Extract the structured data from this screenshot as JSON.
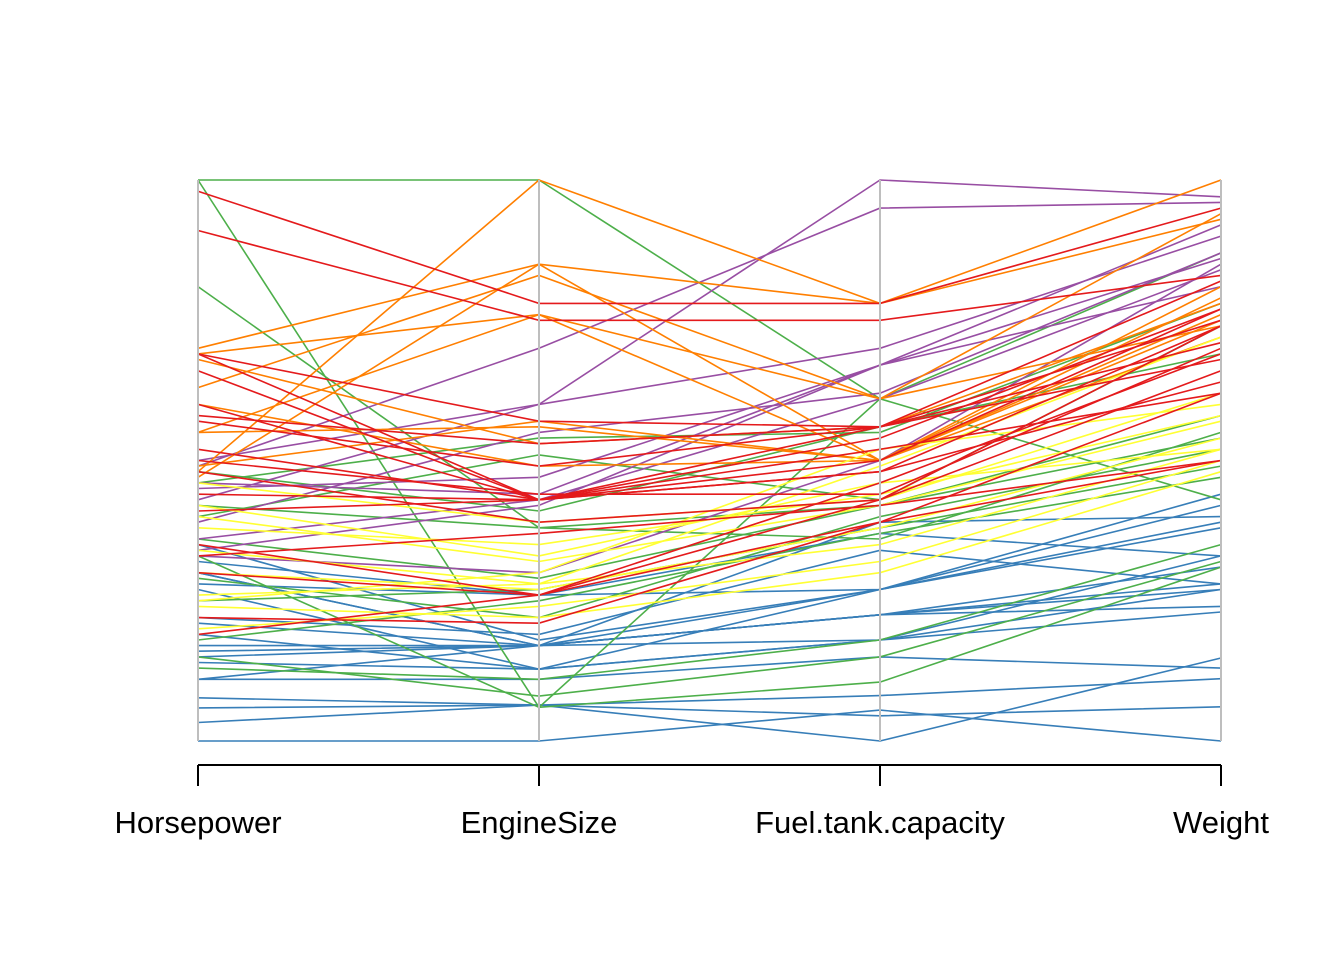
{
  "chart_data": {
    "type": "parallel_coordinates",
    "title": "",
    "axes": [
      "Horsepower",
      "EngineSize",
      "Fuel.tank.capacity",
      "Weight"
    ],
    "scale": "each axis scaled 0 (bottom) to 1 (top), min to max of variable",
    "grid": false,
    "legend": "none",
    "group_colors": {
      "blue": "#377EB8",
      "green": "#4DAF4A",
      "purple": "#984EA3",
      "orange": "#FF7F00",
      "yellow": "#FFFF33",
      "red": "#E41A1C"
    },
    "axis_line_color": "#BEBEBE",
    "series": [
      {
        "group": "blue",
        "values": [
          0.0,
          0.0,
          0.055,
          0.0
        ]
      },
      {
        "group": "blue",
        "values": [
          0.033,
          0.064,
          0.045,
          0.061
        ]
      },
      {
        "group": "blue",
        "values": [
          0.077,
          0.064,
          0.081,
          0.111
        ]
      },
      {
        "group": "blue",
        "values": [
          0.059,
          0.064,
          0.0,
          0.148
        ]
      },
      {
        "group": "blue",
        "values": [
          0.11,
          0.11,
          0.15,
          0.13
        ]
      },
      {
        "group": "blue",
        "values": [
          0.11,
          0.17,
          0.18,
          0.23
        ]
      },
      {
        "group": "blue",
        "values": [
          0.14,
          0.128,
          0.18,
          0.27
        ]
      },
      {
        "group": "blue",
        "values": [
          0.15,
          0.17,
          0.225,
          0.24
        ]
      },
      {
        "group": "blue",
        "values": [
          0.16,
          0.17,
          0.225,
          0.27
        ]
      },
      {
        "group": "blue",
        "values": [
          0.17,
          0.17,
          0.225,
          0.28
        ]
      },
      {
        "group": "blue",
        "values": [
          0.19,
          0.128,
          0.18,
          0.33
        ]
      },
      {
        "group": "blue",
        "values": [
          0.21,
          0.17,
          0.225,
          0.31
        ]
      },
      {
        "group": "blue",
        "values": [
          0.27,
          0.128,
          0.27,
          0.38
        ]
      },
      {
        "group": "blue",
        "values": [
          0.3,
          0.17,
          0.27,
          0.39
        ]
      },
      {
        "group": "blue",
        "values": [
          0.32,
          0.26,
          0.27,
          0.42
        ]
      },
      {
        "group": "blue",
        "values": [
          0.35,
          0.18,
          0.27,
          0.44
        ]
      },
      {
        "group": "blue",
        "values": [
          0.22,
          0.19,
          0.34,
          0.28
        ]
      },
      {
        "group": "blue",
        "values": [
          0.28,
          0.26,
          0.37,
          0.33
        ]
      },
      {
        "group": "blue",
        "values": [
          0.3,
          0.17,
          0.39,
          0.4
        ]
      },
      {
        "group": "green",
        "values": [
          1.0,
          0.06,
          0.105,
          0.31
        ]
      },
      {
        "group": "green",
        "values": [
          0.81,
          0.38,
          0.36,
          0.55
        ]
      },
      {
        "group": "green",
        "values": [
          1.0,
          1.0,
          0.61,
          0.43
        ]
      },
      {
        "group": "green",
        "values": [
          0.15,
          0.08,
          0.15,
          0.32
        ]
      },
      {
        "group": "green",
        "values": [
          0.13,
          0.11,
          0.18,
          0.35
        ]
      },
      {
        "group": "green",
        "values": [
          0.18,
          0.25,
          0.37,
          0.47
        ]
      },
      {
        "group": "green",
        "values": [
          0.25,
          0.27,
          0.38,
          0.49
        ]
      },
      {
        "group": "green",
        "values": [
          0.29,
          0.22,
          0.4,
          0.52
        ]
      },
      {
        "group": "green",
        "values": [
          0.36,
          0.29,
          0.42,
          0.54
        ]
      },
      {
        "group": "green",
        "values": [
          0.42,
          0.38,
          0.42,
          0.58
        ]
      },
      {
        "group": "green",
        "values": [
          0.48,
          0.41,
          0.56,
          0.69
        ]
      },
      {
        "group": "green",
        "values": [
          0.4,
          0.51,
          0.43,
          0.74
        ]
      },
      {
        "group": "green",
        "values": [
          0.46,
          0.54,
          0.55,
          0.78
        ]
      },
      {
        "group": "green",
        "values": [
          0.33,
          0.06,
          0.61,
          0.87
        ]
      },
      {
        "group": "purple",
        "values": [
          0.34,
          0.42,
          0.67,
          0.86
        ]
      },
      {
        "group": "purple",
        "values": [
          0.36,
          0.43,
          0.61,
          0.84
        ]
      },
      {
        "group": "purple",
        "values": [
          0.39,
          0.55,
          0.62,
          0.87
        ]
      },
      {
        "group": "purple",
        "values": [
          0.43,
          0.6,
          0.7,
          0.9
        ]
      },
      {
        "group": "purple",
        "values": [
          0.49,
          0.7,
          0.95,
          0.96
        ]
      },
      {
        "group": "purple",
        "values": [
          0.33,
          0.3,
          0.5,
          0.85
        ]
      },
      {
        "group": "purple",
        "values": [
          0.45,
          0.47,
          0.67,
          0.81
        ]
      },
      {
        "group": "purple",
        "values": [
          0.5,
          0.6,
          1.0,
          0.97
        ]
      },
      {
        "group": "purple",
        "values": [
          0.46,
          0.44,
          0.67,
          0.92
        ]
      },
      {
        "group": "orange",
        "values": [
          0.55,
          0.56,
          0.5,
          0.72
        ]
      },
      {
        "group": "orange",
        "values": [
          0.63,
          0.83,
          0.61,
          0.74
        ]
      },
      {
        "group": "orange",
        "values": [
          0.47,
          0.85,
          0.5,
          0.81
        ]
      },
      {
        "group": "orange",
        "values": [
          0.69,
          0.76,
          0.61,
          0.94
        ]
      },
      {
        "group": "orange",
        "values": [
          0.68,
          0.53,
          0.56,
          0.78
        ]
      },
      {
        "group": "orange",
        "values": [
          0.48,
          1.0,
          0.78,
          1.0
        ]
      },
      {
        "group": "orange",
        "values": [
          0.55,
          0.76,
          0.5,
          0.79
        ]
      },
      {
        "group": "orange",
        "values": [
          0.6,
          0.49,
          0.5,
          0.76
        ]
      },
      {
        "group": "orange",
        "values": [
          0.49,
          0.57,
          0.5,
          0.75
        ]
      },
      {
        "group": "orange",
        "values": [
          0.7,
          0.85,
          0.78,
          0.93
        ]
      },
      {
        "group": "yellow",
        "values": [
          0.24,
          0.22,
          0.3,
          0.48
        ]
      },
      {
        "group": "yellow",
        "values": [
          0.2,
          0.24,
          0.32,
          0.5
        ]
      },
      {
        "group": "yellow",
        "values": [
          0.26,
          0.28,
          0.35,
          0.52
        ]
      },
      {
        "group": "yellow",
        "values": [
          0.3,
          0.27,
          0.38,
          0.54
        ]
      },
      {
        "group": "yellow",
        "values": [
          0.4,
          0.32,
          0.42,
          0.57
        ]
      },
      {
        "group": "yellow",
        "values": [
          0.38,
          0.35,
          0.44,
          0.58
        ]
      },
      {
        "group": "yellow",
        "values": [
          0.42,
          0.33,
          0.46,
          0.52
        ]
      },
      {
        "group": "yellow",
        "values": [
          0.46,
          0.39,
          0.43,
          0.62
        ]
      },
      {
        "group": "yellow",
        "values": [
          0.34,
          0.28,
          0.49,
          0.72
        ]
      },
      {
        "group": "yellow",
        "values": [
          0.25,
          0.3,
          0.52,
          0.6
        ]
      },
      {
        "group": "red",
        "values": [
          0.98,
          0.78,
          0.78,
          0.95
        ]
      },
      {
        "group": "red",
        "values": [
          0.91,
          0.75,
          0.75,
          0.83
        ]
      },
      {
        "group": "red",
        "values": [
          0.69,
          0.43,
          0.5,
          0.77
        ]
      },
      {
        "group": "red",
        "values": [
          0.69,
          0.57,
          0.56,
          0.82
        ]
      },
      {
        "group": "red",
        "values": [
          0.66,
          0.43,
          0.48,
          0.74
        ]
      },
      {
        "group": "red",
        "values": [
          0.6,
          0.43,
          0.48,
          0.64
        ]
      },
      {
        "group": "red",
        "values": [
          0.58,
          0.53,
          0.56,
          0.71
        ]
      },
      {
        "group": "red",
        "values": [
          0.52,
          0.43,
          0.56,
          0.68
        ]
      },
      {
        "group": "red",
        "values": [
          0.48,
          0.39,
          0.43,
          0.74
        ]
      },
      {
        "group": "red",
        "values": [
          0.44,
          0.43,
          0.54,
          0.77
        ]
      },
      {
        "group": "red",
        "values": [
          0.35,
          0.26,
          0.39,
          0.62
        ]
      },
      {
        "group": "red",
        "values": [
          0.3,
          0.26,
          0.43,
          0.66
        ]
      },
      {
        "group": "red",
        "values": [
          0.22,
          0.21,
          0.39,
          0.5
        ]
      },
      {
        "group": "red",
        "values": [
          0.19,
          0.26,
          0.46,
          0.69
        ]
      },
      {
        "group": "red",
        "values": [
          0.41,
          0.43,
          0.52,
          0.62
        ]
      },
      {
        "group": "red",
        "values": [
          0.5,
          0.44,
          0.44,
          0.7
        ]
      },
      {
        "group": "red",
        "values": [
          0.57,
          0.49,
          0.56,
          0.75
        ]
      },
      {
        "group": "red",
        "values": [
          0.33,
          0.37,
          0.42,
          0.5
        ]
      }
    ]
  }
}
